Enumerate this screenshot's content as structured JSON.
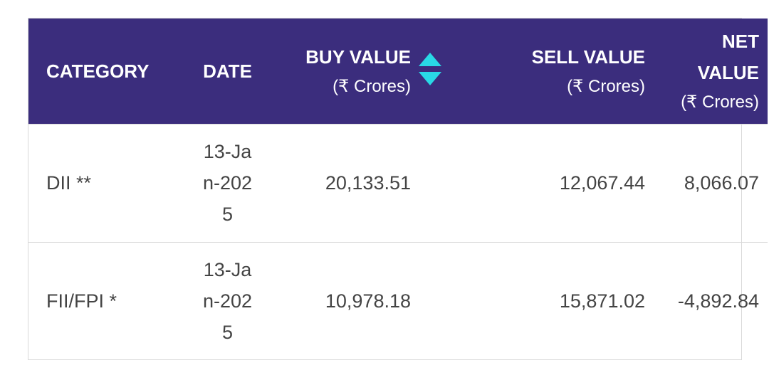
{
  "table": {
    "headers": {
      "category": "CATEGORY",
      "date": "DATE",
      "buy_value": "BUY VALUE",
      "buy_value_unit": "(₹ Crores)",
      "sell_value": "SELL VALUE",
      "sell_value_unit": "(₹ Crores)",
      "net_value_line1": "NET",
      "net_value_line2": "VALUE",
      "net_value_unit": "(₹ Crores)"
    },
    "sort_icon": "sort-up-down-icon",
    "rows": [
      {
        "category": "DII **",
        "date": "13-Jan-2025",
        "buy_value": "20,133.51",
        "sell_value": "12,067.44",
        "net_value": "8,066.07"
      },
      {
        "category": "FII/FPI *",
        "date": "13-Jan-2025",
        "buy_value": "10,978.18",
        "sell_value": "15,871.02",
        "net_value": "-4,892.84"
      }
    ]
  },
  "colors": {
    "header_bg": "#3b2d7d",
    "sort_icon": "#29d9e6",
    "text": "#444444"
  }
}
